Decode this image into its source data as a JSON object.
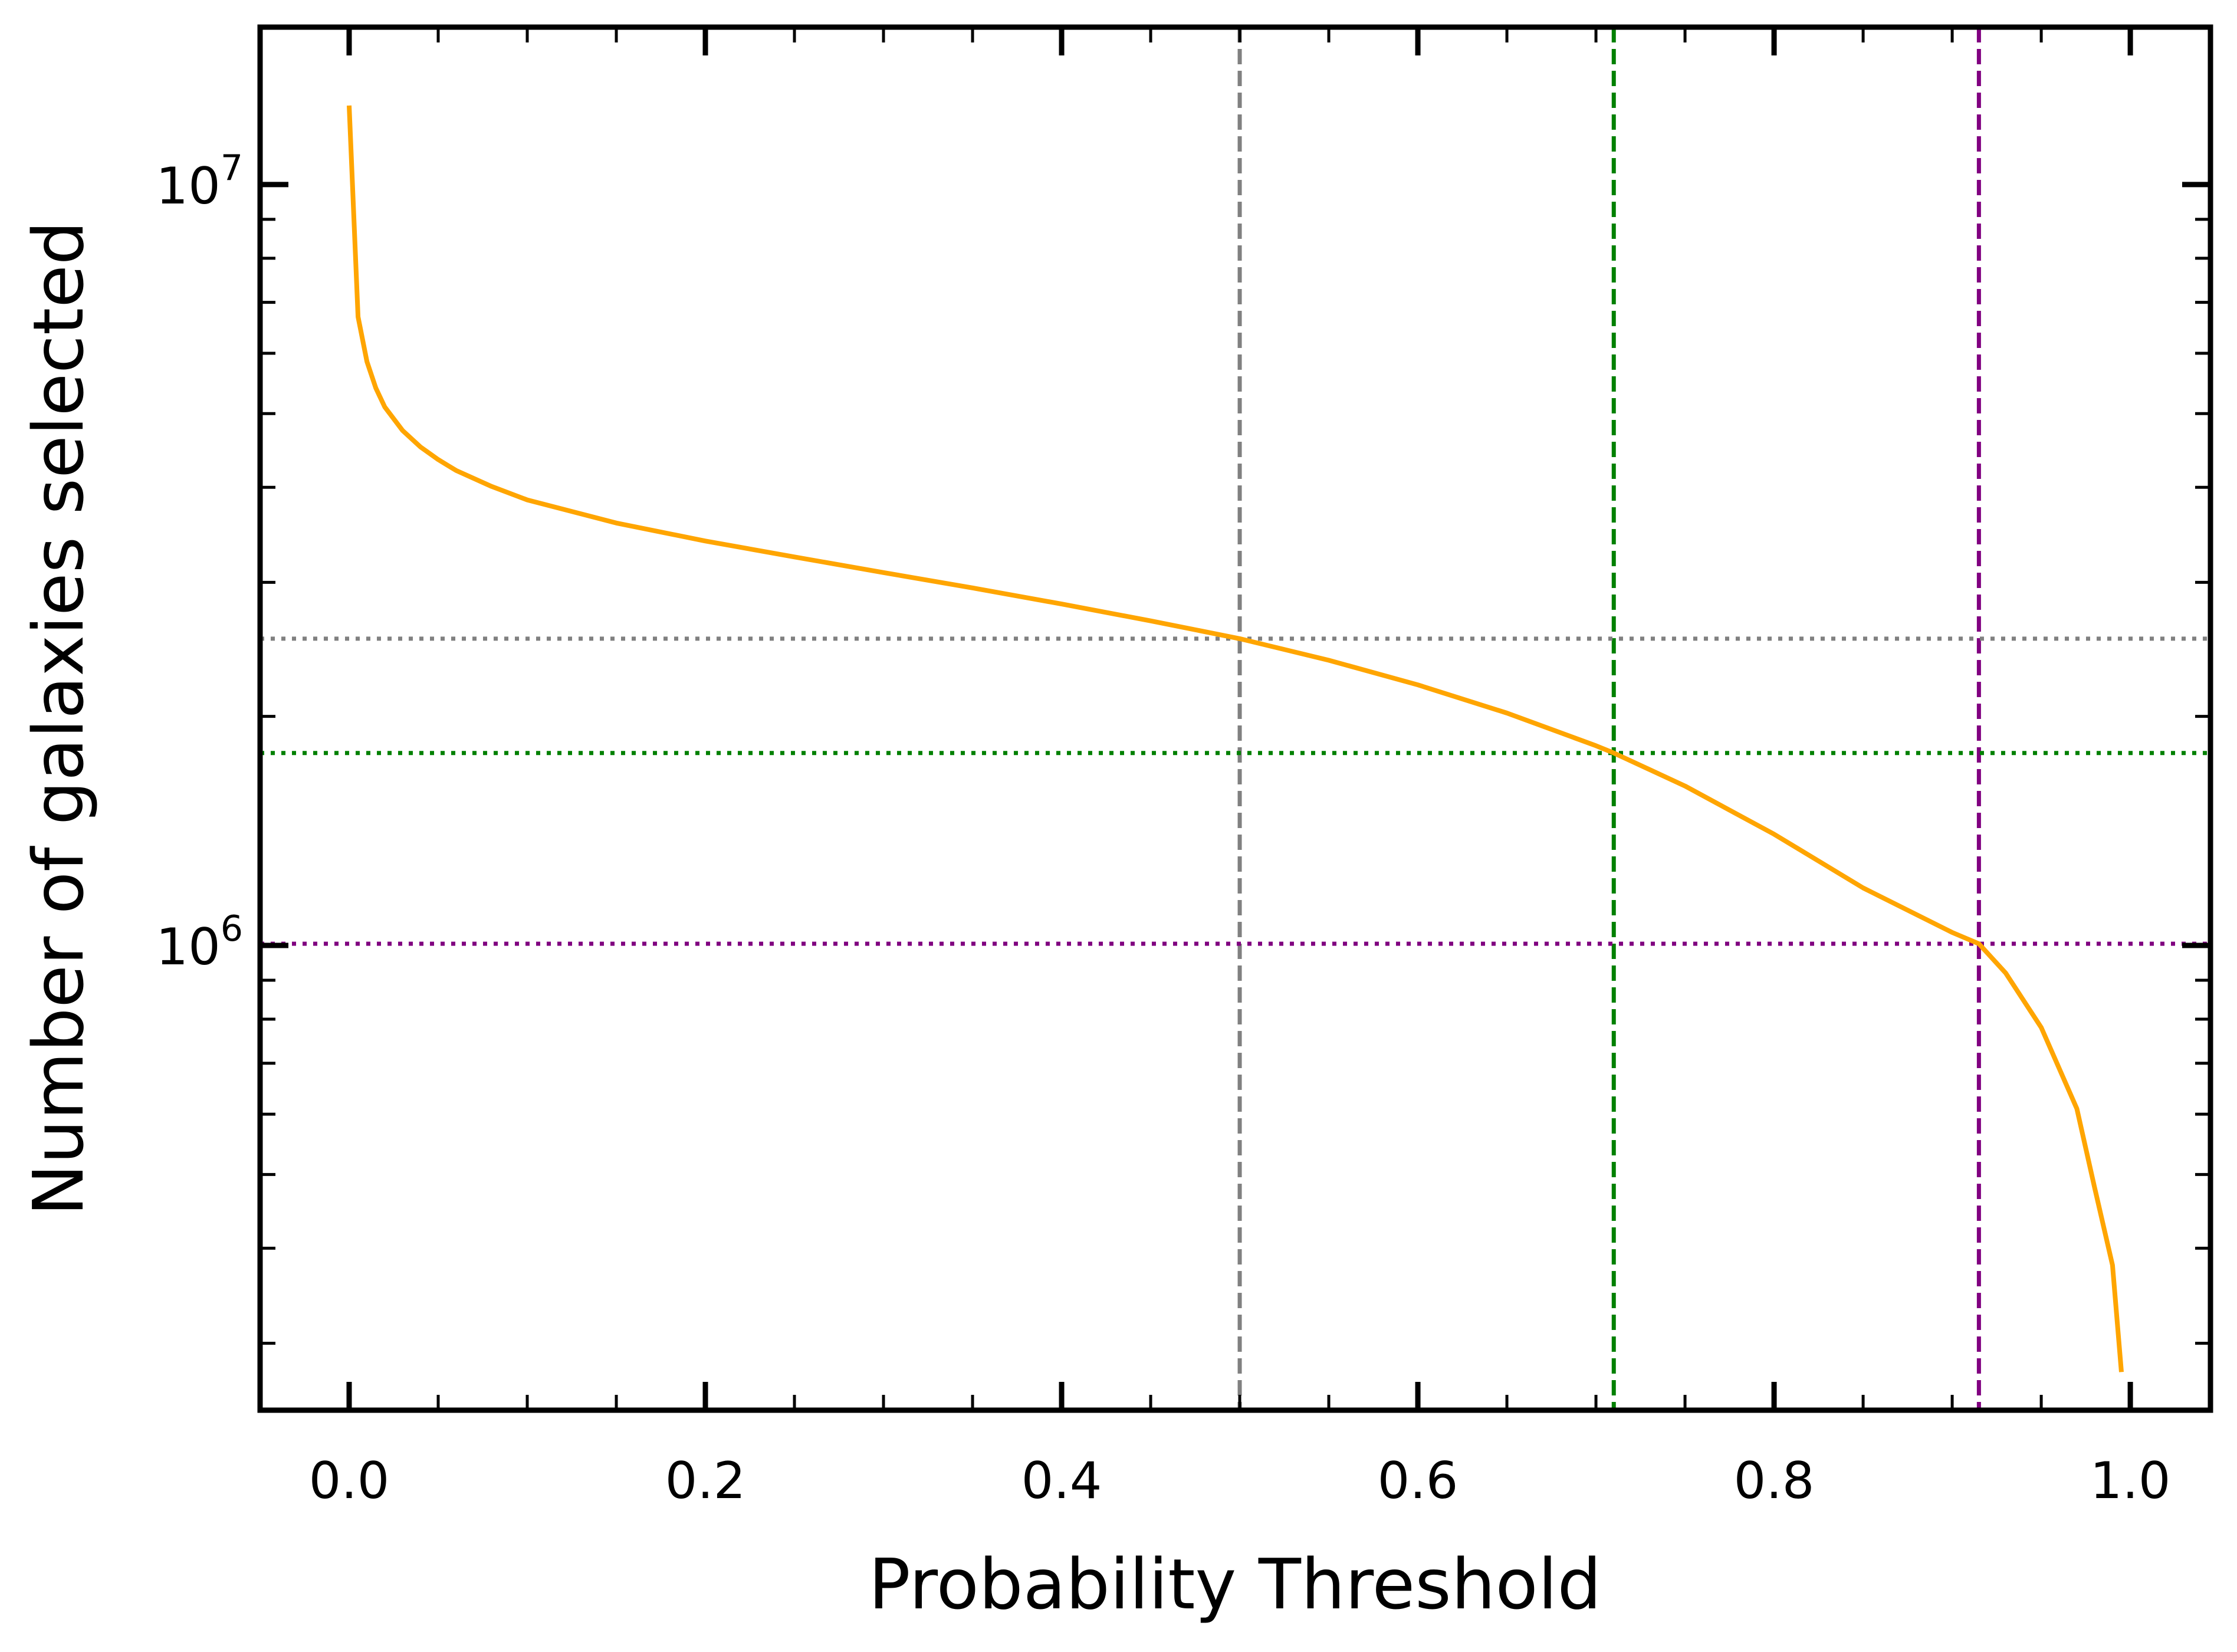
{
  "chart_data": {
    "type": "line",
    "title": "",
    "xlabel": "Probability Threshold",
    "ylabel": "Number of galaxies selected",
    "xlim": [
      -0.05,
      1.045
    ],
    "ylim": [
      245000,
      16100000
    ],
    "yscale": "log",
    "grid": false,
    "x_ticks": [
      0.0,
      0.2,
      0.4,
      0.6,
      0.8,
      1.0
    ],
    "x_tick_labels": [
      "0.0",
      "0.2",
      "0.4",
      "0.6",
      "0.8",
      "1.0"
    ],
    "x_minor_step": 0.05,
    "y_major_ticks": [
      {
        "value": 1000000,
        "base": "10",
        "exp": "6"
      },
      {
        "value": 10000000,
        "base": "10",
        "exp": "7"
      }
    ],
    "series": [
      {
        "color": "#FFA500",
        "style": "solid",
        "x": [
          0.0,
          0.005,
          0.01,
          0.015,
          0.02,
          0.03,
          0.04,
          0.05,
          0.06,
          0.08,
          0.1,
          0.15,
          0.2,
          0.25,
          0.3,
          0.35,
          0.4,
          0.45,
          0.5,
          0.55,
          0.6,
          0.65,
          0.7,
          0.71,
          0.75,
          0.8,
          0.85,
          0.9,
          0.915,
          0.93,
          0.95,
          0.97,
          0.98,
          0.99,
          0.995
        ],
        "y": [
          12700000,
          6700000,
          5850000,
          5400000,
          5100000,
          4750000,
          4520000,
          4350000,
          4210000,
          4010000,
          3850000,
          3590000,
          3400000,
          3240000,
          3090000,
          2950000,
          2810000,
          2670000,
          2530000,
          2370000,
          2200000,
          2020000,
          1830000,
          1790000,
          1620000,
          1400000,
          1190000,
          1040000,
          1005000,
          920000,
          780000,
          610000,
          480000,
          380000,
          275000
        ]
      }
    ],
    "reference_lines": {
      "vertical": [
        {
          "x": 0.5,
          "color": "#808080"
        },
        {
          "x": 0.71,
          "color": "#008000"
        },
        {
          "x": 0.915,
          "color": "#800080"
        }
      ],
      "horizontal": [
        {
          "y": 2530000,
          "color": "#808080"
        },
        {
          "y": 1790000,
          "color": "#008000"
        },
        {
          "y": 1005000,
          "color": "#800080"
        }
      ]
    }
  }
}
